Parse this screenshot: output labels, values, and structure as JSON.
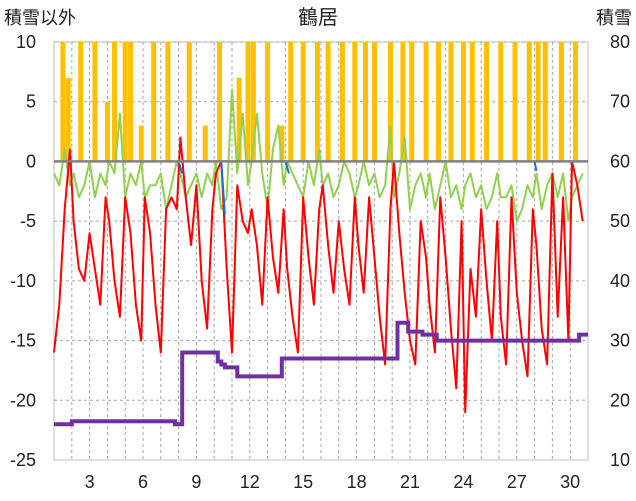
{
  "chart_data": {
    "type": "line",
    "title": "鶴居",
    "y_left_label": "積雪以外",
    "y_right_label": "積雪",
    "y_left_range": [
      -25,
      10
    ],
    "y_left_ticks": [
      10,
      5,
      0,
      -5,
      -10,
      -15,
      -20,
      -25
    ],
    "y_right_range": [
      10,
      80
    ],
    "y_right_ticks": [
      80,
      70,
      60,
      50,
      40,
      30,
      20,
      10
    ],
    "x_range": [
      1,
      31
    ],
    "x_ticks": [
      3,
      6,
      9,
      12,
      15,
      18,
      21,
      24,
      27,
      30
    ],
    "grid": true,
    "colors": {
      "temperature": "#ff0000",
      "precipitation": "#ffc000",
      "wind": "#92d050",
      "sunshine": "#1f6fd0",
      "snow_depth": "#7030a0",
      "zero_line": "#808080",
      "grid": "#a6a6a6"
    },
    "temperature": {
      "x": [
        1.0,
        1.3,
        1.6,
        1.9,
        2.1,
        2.4,
        2.7,
        3.0,
        3.3,
        3.6,
        3.9,
        4.1,
        4.4,
        4.7,
        5.0,
        5.3,
        5.6,
        5.9,
        6.1,
        6.4,
        6.7,
        7.0,
        7.3,
        7.6,
        7.9,
        8.1,
        8.4,
        8.7,
        9.0,
        9.3,
        9.6,
        9.9,
        10.1,
        10.4,
        10.7,
        11.0,
        11.3,
        11.6,
        11.9,
        12.1,
        12.4,
        12.7,
        13.0,
        13.3,
        13.6,
        13.9,
        14.1,
        14.4,
        14.7,
        15.0,
        15.3,
        15.6,
        15.9,
        16.1,
        16.4,
        16.7,
        17.0,
        17.3,
        17.6,
        17.9,
        18.1,
        18.4,
        18.7,
        19.0,
        19.3,
        19.6,
        19.9,
        20.1,
        20.4,
        20.7,
        21.0,
        21.3,
        21.6,
        21.9,
        22.1,
        22.4,
        22.7,
        23.0,
        23.3,
        23.6,
        23.9,
        24.1,
        24.4,
        24.7,
        25.0,
        25.3,
        25.6,
        25.9,
        26.1,
        26.4,
        26.7,
        27.0,
        27.3,
        27.6,
        27.9,
        28.1,
        28.4,
        28.7,
        29.0,
        29.3,
        29.6,
        29.9,
        30.1,
        30.4,
        30.7
      ],
      "y": [
        -16,
        -12,
        -4,
        1,
        -5,
        -9,
        -10,
        -6,
        -9,
        -12,
        -3,
        -5,
        -10,
        -13,
        -3,
        -6,
        -12,
        -15,
        -3,
        -6,
        -12,
        -16,
        -4,
        -3,
        -4,
        2,
        -3,
        -7,
        -2,
        -10,
        -14,
        -4,
        -1,
        0,
        -9,
        -16,
        -2,
        -5,
        -6,
        -4,
        -7,
        -12,
        -3,
        -8,
        -11,
        -4,
        -9,
        -13,
        -16,
        -3,
        -8,
        -12,
        -4,
        -2,
        -7,
        -11,
        -5,
        -9,
        -12,
        -3,
        -7,
        -11,
        -3,
        -8,
        -13,
        -17,
        -4,
        0,
        -6,
        -11,
        -15,
        -17,
        -5,
        -8,
        -12,
        -16,
        -3,
        -8,
        -14,
        -19,
        -5,
        -21,
        -9,
        -13,
        -4,
        -10,
        -15,
        -5,
        -13,
        -17,
        -3,
        -11,
        -15,
        -18,
        -4,
        -7,
        -14,
        -17,
        -1,
        -13,
        -3,
        -15,
        0,
        -2,
        -5
      ]
    },
    "precipitation": {
      "x": [
        1.5,
        1.8,
        2.5,
        3.3,
        4.0,
        4.4,
        5.0,
        5.3,
        5.9,
        6.6,
        7.4,
        8.6,
        9.5,
        10.3,
        11.4,
        11.9,
        12.2,
        13.0,
        13.8,
        14.3,
        15.0,
        15.8,
        16.4,
        17.2,
        17.9,
        18.5,
        19.0,
        19.9,
        20.6,
        21.1,
        21.9,
        22.6,
        23.3,
        24.0,
        24.5,
        25.3,
        26.1,
        26.9,
        27.7,
        28.2,
        28.6,
        29.5,
        30.3
      ],
      "h": [
        10,
        7,
        10,
        10,
        5,
        10,
        10,
        10,
        3,
        10,
        10,
        10,
        3,
        10,
        7,
        10,
        10,
        10,
        3,
        10,
        10,
        10,
        10,
        10,
        10,
        10,
        10,
        10,
        10,
        10,
        10,
        10,
        10,
        10,
        10,
        10,
        10,
        10,
        10,
        10,
        10,
        10,
        10
      ]
    },
    "wind": {
      "x": [
        1.0,
        1.3,
        1.6,
        1.9,
        2.1,
        2.4,
        2.7,
        3.0,
        3.3,
        3.6,
        3.9,
        4.1,
        4.4,
        4.7,
        5.0,
        5.3,
        5.6,
        5.9,
        6.1,
        6.4,
        6.7,
        7.0,
        7.3,
        7.6,
        7.9,
        8.1,
        8.4,
        8.7,
        9.0,
        9.3,
        9.6,
        9.9,
        10.1,
        10.4,
        10.7,
        11.0,
        11.3,
        11.6,
        11.9,
        12.1,
        12.4,
        12.7,
        13.0,
        13.3,
        13.6,
        13.9,
        14.1,
        14.4,
        14.7,
        15.0,
        15.3,
        15.6,
        15.9,
        16.1,
        16.4,
        16.7,
        17.0,
        17.3,
        17.6,
        17.9,
        18.1,
        18.4,
        18.7,
        19.0,
        19.3,
        19.6,
        19.9,
        20.1,
        20.4,
        20.7,
        21.0,
        21.3,
        21.6,
        21.9,
        22.1,
        22.4,
        22.7,
        23.0,
        23.3,
        23.6,
        23.9,
        24.1,
        24.4,
        24.7,
        25.0,
        25.3,
        25.6,
        25.9,
        26.1,
        26.4,
        26.7,
        27.0,
        27.3,
        27.6,
        27.9,
        28.1,
        28.4,
        28.7,
        29.0,
        29.3,
        29.6,
        29.9,
        30.1,
        30.4,
        30.7
      ],
      "y": [
        -1,
        -2,
        1,
        -2,
        -1,
        -3,
        -2,
        0,
        -3,
        -1,
        -2,
        0,
        -1,
        4,
        -3,
        -1,
        -2,
        0,
        -3,
        -2,
        -2,
        -1,
        -4,
        -2,
        0,
        -1,
        -3,
        -2,
        -1,
        -3,
        -1,
        -2,
        0,
        -4,
        -3,
        6,
        -1,
        4,
        -2,
        0,
        4,
        -1,
        -4,
        1,
        3,
        -2,
        0,
        -1,
        -2,
        -3,
        0,
        -2,
        1,
        -2,
        -1,
        -3,
        -2,
        0,
        -1,
        -3,
        -2,
        0,
        -2,
        -1,
        -3,
        -2,
        3,
        -3,
        -1,
        2,
        -4,
        -2,
        -1,
        -3,
        -1,
        -4,
        -2,
        0,
        -3,
        -2,
        -4,
        -2,
        -1,
        -3,
        -2,
        -4,
        -3,
        -1,
        -3,
        -3,
        -2,
        -5,
        -4,
        -2,
        -3,
        -1,
        -4,
        -2,
        -1,
        -3,
        -1,
        -5,
        -3,
        -2,
        -1
      ]
    },
    "sunshine": {
      "x": [
        8.0,
        8.2,
        10.4,
        10.6,
        14.0,
        14.2,
        28.0,
        28.1
      ],
      "y": [
        0,
        -1,
        0,
        -4.5,
        0,
        -1,
        0,
        -0.8
      ]
    },
    "snow_depth": {
      "x": [
        1,
        1.9,
        2.0,
        7.8,
        8.2,
        10.2,
        10.4,
        10.6,
        11.3,
        11.6,
        13.4,
        13.8,
        20.0,
        20.3,
        20.9,
        21.7,
        22.5,
        30.5,
        31
      ],
      "y": [
        16,
        16,
        16.5,
        16,
        28,
        26.5,
        26,
        25.5,
        24,
        24,
        24,
        27,
        27,
        33,
        31.5,
        31,
        30,
        31,
        31
      ]
    }
  }
}
